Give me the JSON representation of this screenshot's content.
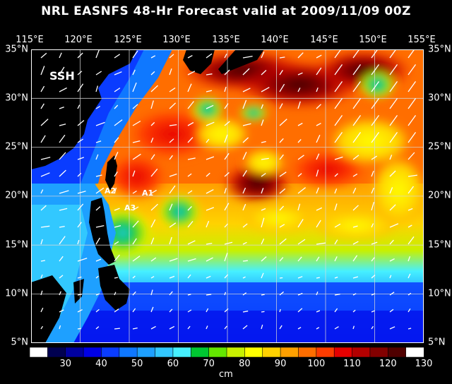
{
  "title": "NRL EASNFS   48-Hr Forecast valid at 2009/11/09 00Z",
  "field_label": "SSH",
  "lon_labels": [
    "115°E",
    "120°E",
    "125°E",
    "130°E",
    "135°E",
    "140°E",
    "145°E",
    "150°E",
    "155°E"
  ],
  "lat_labels": [
    "35°N",
    "30°N",
    "25°N",
    "20°N",
    "15°N",
    "10°N",
    "5°N"
  ],
  "markers": [
    "A1",
    "A2",
    "A3"
  ],
  "colorbar": {
    "ticks": [
      "30",
      "40",
      "50",
      "60",
      "70",
      "80",
      "90",
      "100",
      "110",
      "120",
      "130"
    ],
    "units": "cm",
    "colors": [
      "#ffffff",
      "#000050",
      "#0000a0",
      "#0000e6",
      "#0a3cff",
      "#0f78ff",
      "#1ea0ff",
      "#32c8ff",
      "#46f0ff",
      "#00c832",
      "#64e600",
      "#c8f000",
      "#ffff00",
      "#ffd200",
      "#ffa000",
      "#ff6e00",
      "#ff3c00",
      "#e60000",
      "#b40000",
      "#820000",
      "#500000",
      "#ffffff"
    ]
  }
}
